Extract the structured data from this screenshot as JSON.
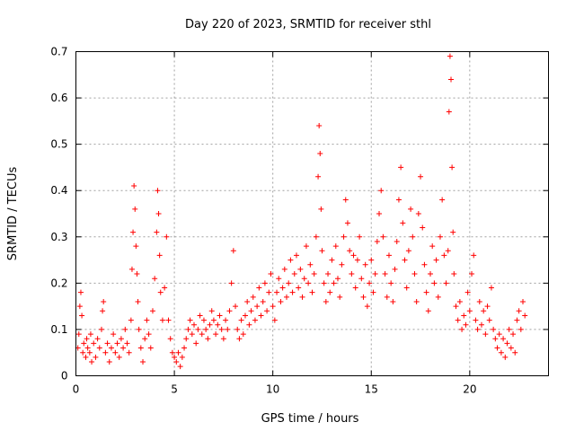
{
  "chart_data": {
    "type": "scatter",
    "title": "Day 220 of 2023, SRMTID for receiver sthl",
    "xlabel": "GPS time / hours",
    "ylabel": "SRMTID / TECUs",
    "xlim": [
      0,
      24
    ],
    "ylim": [
      0,
      0.7
    ],
    "xticks": [
      0,
      5,
      10,
      15,
      20
    ],
    "yticks": [
      0,
      0.1,
      0.2,
      0.3,
      0.4,
      0.5,
      0.6,
      0.7
    ],
    "xtick_labels": [
      "0",
      "5",
      "10",
      "15",
      "20"
    ],
    "ytick_labels": [
      "0",
      "0.1",
      "0.2",
      "0.3",
      "0.4",
      "0.5",
      "0.6",
      "0.7"
    ],
    "grid": true,
    "marker": "+",
    "color": "#ff0000",
    "series": [
      {
        "name": "SRMTID",
        "points": [
          [
            0.1,
            0.06
          ],
          [
            0.15,
            0.09
          ],
          [
            0.2,
            0.15
          ],
          [
            0.25,
            0.18
          ],
          [
            0.3,
            0.13
          ],
          [
            0.35,
            0.05
          ],
          [
            0.4,
            0.07
          ],
          [
            0.5,
            0.04
          ],
          [
            0.55,
            0.08
          ],
          [
            0.6,
            0.06
          ],
          [
            0.7,
            0.05
          ],
          [
            0.75,
            0.09
          ],
          [
            0.8,
            0.03
          ],
          [
            0.9,
            0.07
          ],
          [
            1.0,
            0.04
          ],
          [
            1.1,
            0.08
          ],
          [
            1.2,
            0.06
          ],
          [
            1.3,
            0.1
          ],
          [
            1.35,
            0.14
          ],
          [
            1.4,
            0.16
          ],
          [
            1.5,
            0.05
          ],
          [
            1.6,
            0.07
          ],
          [
            1.7,
            0.03
          ],
          [
            1.8,
            0.06
          ],
          [
            1.9,
            0.09
          ],
          [
            2.0,
            0.05
          ],
          [
            2.1,
            0.07
          ],
          [
            2.2,
            0.04
          ],
          [
            2.3,
            0.08
          ],
          [
            2.4,
            0.06
          ],
          [
            2.5,
            0.1
          ],
          [
            2.6,
            0.07
          ],
          [
            2.7,
            0.05
          ],
          [
            2.8,
            0.12
          ],
          [
            2.85,
            0.23
          ],
          [
            2.9,
            0.31
          ],
          [
            2.95,
            0.41
          ],
          [
            3.0,
            0.36
          ],
          [
            3.05,
            0.28
          ],
          [
            3.1,
            0.22
          ],
          [
            3.15,
            0.16
          ],
          [
            3.2,
            0.1
          ],
          [
            3.3,
            0.06
          ],
          [
            3.4,
            0.03
          ],
          [
            3.5,
            0.08
          ],
          [
            3.6,
            0.12
          ],
          [
            3.7,
            0.09
          ],
          [
            3.8,
            0.06
          ],
          [
            3.9,
            0.14
          ],
          [
            4.0,
            0.21
          ],
          [
            4.1,
            0.31
          ],
          [
            4.15,
            0.4
          ],
          [
            4.2,
            0.35
          ],
          [
            4.25,
            0.26
          ],
          [
            4.3,
            0.18
          ],
          [
            4.4,
            0.12
          ],
          [
            4.5,
            0.19
          ],
          [
            4.6,
            0.3
          ],
          [
            4.7,
            0.12
          ],
          [
            4.8,
            0.08
          ],
          [
            4.9,
            0.05
          ],
          [
            5.0,
            0.04
          ],
          [
            5.1,
            0.03
          ],
          [
            5.2,
            0.05
          ],
          [
            5.3,
            0.02
          ],
          [
            5.4,
            0.04
          ],
          [
            5.5,
            0.06
          ],
          [
            5.6,
            0.08
          ],
          [
            5.7,
            0.1
          ],
          [
            5.8,
            0.12
          ],
          [
            5.9,
            0.09
          ],
          [
            6.0,
            0.11
          ],
          [
            6.1,
            0.07
          ],
          [
            6.2,
            0.1
          ],
          [
            6.3,
            0.13
          ],
          [
            6.4,
            0.09
          ],
          [
            6.5,
            0.12
          ],
          [
            6.6,
            0.1
          ],
          [
            6.7,
            0.08
          ],
          [
            6.8,
            0.11
          ],
          [
            6.9,
            0.14
          ],
          [
            7.0,
            0.12
          ],
          [
            7.1,
            0.09
          ],
          [
            7.2,
            0.11
          ],
          [
            7.3,
            0.13
          ],
          [
            7.4,
            0.1
          ],
          [
            7.5,
            0.08
          ],
          [
            7.6,
            0.12
          ],
          [
            7.7,
            0.1
          ],
          [
            7.8,
            0.14
          ],
          [
            7.9,
            0.2
          ],
          [
            8.0,
            0.27
          ],
          [
            8.1,
            0.15
          ],
          [
            8.2,
            0.1
          ],
          [
            8.3,
            0.08
          ],
          [
            8.4,
            0.12
          ],
          [
            8.5,
            0.09
          ],
          [
            8.6,
            0.13
          ],
          [
            8.7,
            0.16
          ],
          [
            8.8,
            0.11
          ],
          [
            8.9,
            0.14
          ],
          [
            9.0,
            0.17
          ],
          [
            9.1,
            0.12
          ],
          [
            9.2,
            0.15
          ],
          [
            9.3,
            0.19
          ],
          [
            9.4,
            0.13
          ],
          [
            9.5,
            0.16
          ],
          [
            9.6,
            0.2
          ],
          [
            9.7,
            0.14
          ],
          [
            9.8,
            0.18
          ],
          [
            9.9,
            0.22
          ],
          [
            10.0,
            0.15
          ],
          [
            10.1,
            0.12
          ],
          [
            10.2,
            0.18
          ],
          [
            10.3,
            0.21
          ],
          [
            10.4,
            0.16
          ],
          [
            10.5,
            0.19
          ],
          [
            10.6,
            0.23
          ],
          [
            10.7,
            0.17
          ],
          [
            10.8,
            0.2
          ],
          [
            10.9,
            0.25
          ],
          [
            11.0,
            0.18
          ],
          [
            11.1,
            0.22
          ],
          [
            11.2,
            0.26
          ],
          [
            11.3,
            0.19
          ],
          [
            11.4,
            0.23
          ],
          [
            11.5,
            0.17
          ],
          [
            11.6,
            0.21
          ],
          [
            11.7,
            0.28
          ],
          [
            11.8,
            0.2
          ],
          [
            11.9,
            0.24
          ],
          [
            12.0,
            0.18
          ],
          [
            12.1,
            0.22
          ],
          [
            12.2,
            0.3
          ],
          [
            12.3,
            0.43
          ],
          [
            12.35,
            0.54
          ],
          [
            12.4,
            0.48
          ],
          [
            12.45,
            0.36
          ],
          [
            12.5,
            0.27
          ],
          [
            12.6,
            0.2
          ],
          [
            12.7,
            0.16
          ],
          [
            12.8,
            0.22
          ],
          [
            12.9,
            0.18
          ],
          [
            13.0,
            0.25
          ],
          [
            13.1,
            0.2
          ],
          [
            13.2,
            0.28
          ],
          [
            13.3,
            0.21
          ],
          [
            13.4,
            0.17
          ],
          [
            13.5,
            0.24
          ],
          [
            13.6,
            0.3
          ],
          [
            13.7,
            0.38
          ],
          [
            13.8,
            0.33
          ],
          [
            13.9,
            0.27
          ],
          [
            14.0,
            0.22
          ],
          [
            14.1,
            0.26
          ],
          [
            14.2,
            0.19
          ],
          [
            14.3,
            0.25
          ],
          [
            14.4,
            0.3
          ],
          [
            14.5,
            0.21
          ],
          [
            14.6,
            0.17
          ],
          [
            14.7,
            0.24
          ],
          [
            14.8,
            0.15
          ],
          [
            14.9,
            0.2
          ],
          [
            15.0,
            0.25
          ],
          [
            15.1,
            0.18
          ],
          [
            15.2,
            0.22
          ],
          [
            15.3,
            0.29
          ],
          [
            15.4,
            0.35
          ],
          [
            15.5,
            0.4
          ],
          [
            15.6,
            0.3
          ],
          [
            15.7,
            0.22
          ],
          [
            15.8,
            0.17
          ],
          [
            15.9,
            0.26
          ],
          [
            16.0,
            0.2
          ],
          [
            16.1,
            0.16
          ],
          [
            16.2,
            0.23
          ],
          [
            16.3,
            0.29
          ],
          [
            16.4,
            0.38
          ],
          [
            16.5,
            0.45
          ],
          [
            16.6,
            0.33
          ],
          [
            16.7,
            0.25
          ],
          [
            16.8,
            0.19
          ],
          [
            16.9,
            0.27
          ],
          [
            17.0,
            0.36
          ],
          [
            17.1,
            0.3
          ],
          [
            17.2,
            0.22
          ],
          [
            17.3,
            0.16
          ],
          [
            17.4,
            0.35
          ],
          [
            17.5,
            0.43
          ],
          [
            17.6,
            0.32
          ],
          [
            17.7,
            0.24
          ],
          [
            17.8,
            0.18
          ],
          [
            17.9,
            0.14
          ],
          [
            18.0,
            0.22
          ],
          [
            18.1,
            0.28
          ],
          [
            18.2,
            0.2
          ],
          [
            18.3,
            0.25
          ],
          [
            18.4,
            0.17
          ],
          [
            18.5,
            0.3
          ],
          [
            18.6,
            0.38
          ],
          [
            18.7,
            0.26
          ],
          [
            18.8,
            0.2
          ],
          [
            18.9,
            0.27
          ],
          [
            18.95,
            0.57
          ],
          [
            19.0,
            0.69
          ],
          [
            19.05,
            0.64
          ],
          [
            19.1,
            0.45
          ],
          [
            19.15,
            0.31
          ],
          [
            19.2,
            0.22
          ],
          [
            19.3,
            0.15
          ],
          [
            19.4,
            0.12
          ],
          [
            19.5,
            0.16
          ],
          [
            19.6,
            0.1
          ],
          [
            19.7,
            0.13
          ],
          [
            19.8,
            0.11
          ],
          [
            19.9,
            0.18
          ],
          [
            20.0,
            0.14
          ],
          [
            20.1,
            0.22
          ],
          [
            20.2,
            0.26
          ],
          [
            20.3,
            0.12
          ],
          [
            20.4,
            0.1
          ],
          [
            20.5,
            0.16
          ],
          [
            20.6,
            0.11
          ],
          [
            20.7,
            0.14
          ],
          [
            20.8,
            0.09
          ],
          [
            20.9,
            0.15
          ],
          [
            21.0,
            0.12
          ],
          [
            21.1,
            0.19
          ],
          [
            21.2,
            0.1
          ],
          [
            21.3,
            0.08
          ],
          [
            21.4,
            0.06
          ],
          [
            21.5,
            0.09
          ],
          [
            21.6,
            0.05
          ],
          [
            21.7,
            0.08
          ],
          [
            21.8,
            0.04
          ],
          [
            21.9,
            0.07
          ],
          [
            22.0,
            0.1
          ],
          [
            22.1,
            0.06
          ],
          [
            22.2,
            0.09
          ],
          [
            22.3,
            0.05
          ],
          [
            22.4,
            0.12
          ],
          [
            22.5,
            0.14
          ],
          [
            22.6,
            0.1
          ],
          [
            22.7,
            0.16
          ],
          [
            22.8,
            0.13
          ]
        ]
      }
    ]
  }
}
